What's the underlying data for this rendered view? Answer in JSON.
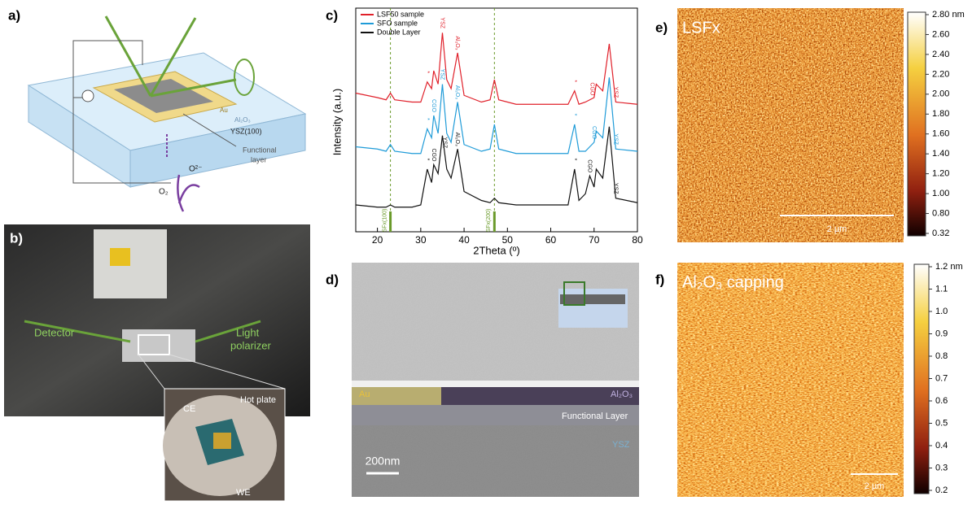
{
  "panel_a": {
    "label": "a)",
    "au": "Au",
    "al2o3": "Al₂O₃",
    "ysz": "YSZ(100)",
    "functional_layer": [
      "Functional",
      "layer"
    ],
    "o2minus": "O²⁻",
    "o2": "O₂"
  },
  "panel_b": {
    "label": "b)",
    "detector": "Detector",
    "light_polarizer": [
      "Light",
      "polarizer"
    ],
    "ce": "CE",
    "hot_plate": "Hot plate",
    "we": "WE"
  },
  "chart_data": {
    "type": "line",
    "label": "c)",
    "x_label": "2Theta (º)",
    "y_label": "Intensity (a.u.)",
    "xlim": [
      15,
      80
    ],
    "xticks": [
      20,
      30,
      40,
      50,
      60,
      70,
      80
    ],
    "ylim": [
      0,
      100
    ],
    "reference_x": [
      23,
      47
    ],
    "reference_labels": [
      "SFx(100)",
      "SFx(200)"
    ],
    "reference_color": "#6a9a2a",
    "x": [
      15,
      20,
      22,
      23,
      24,
      28,
      30,
      31.5,
      32.5,
      33,
      34,
      35,
      36,
      37,
      38.5,
      40,
      44,
      46,
      47,
      48,
      52,
      60,
      64,
      65.5,
      66.5,
      68,
      69,
      70,
      70.5,
      72,
      73.5,
      75,
      80
    ],
    "series": [
      {
        "name": "LSF50 sample",
        "color": "#e0202a",
        "values": [
          62,
          60,
          59,
          62,
          59,
          58,
          58,
          67,
          64,
          72,
          66,
          89,
          68,
          64,
          80,
          61,
          58,
          59,
          68,
          59,
          57,
          57,
          57,
          63,
          57,
          58,
          59,
          60,
          66,
          63,
          84,
          58,
          57
        ],
        "peak_labels": [
          {
            "x": 31.5,
            "text": "*"
          },
          {
            "x": 35,
            "text": "YSZ"
          },
          {
            "x": 38.5,
            "text": "Al₂O₃"
          },
          {
            "x": 65.5,
            "text": "*"
          },
          {
            "x": 69.5,
            "text": "CGO"
          },
          {
            "x": 75,
            "text": "YSZ"
          }
        ]
      },
      {
        "name": "SFO sample",
        "color": "#1f9bd8",
        "values": [
          38,
          37,
          36,
          39,
          36,
          35,
          35,
          46,
          42,
          52,
          44,
          66,
          44,
          40,
          58,
          39,
          36,
          37,
          48,
          37,
          35,
          35,
          35,
          48,
          36,
          36,
          38,
          40,
          45,
          42,
          69,
          37,
          36
        ],
        "peak_labels": [
          {
            "x": 31.5,
            "text": "*"
          },
          {
            "x": 33,
            "text": "CGO"
          },
          {
            "x": 35,
            "text": "YSZ"
          },
          {
            "x": 38.5,
            "text": "Al₂O₃"
          },
          {
            "x": 65.5,
            "text": "*"
          },
          {
            "x": 70,
            "text": "CGO"
          },
          {
            "x": 75,
            "text": "YSZ"
          }
        ]
      },
      {
        "name": "Double Layer",
        "color": "#111111",
        "values": [
          12,
          11,
          11,
          12,
          11,
          11,
          12,
          28,
          22,
          30,
          26,
          43,
          28,
          24,
          37,
          18,
          14,
          13,
          15,
          13,
          12,
          12,
          12,
          28,
          14,
          17,
          25,
          20,
          28,
          24,
          47,
          15,
          13
        ],
        "peak_labels": [
          {
            "x": 31.5,
            "text": "*"
          },
          {
            "x": 33,
            "text": "CGO"
          },
          {
            "x": 35.5,
            "text": "YSZ"
          },
          {
            "x": 38.5,
            "text": "Al₂O₃"
          },
          {
            "x": 65.5,
            "text": "*"
          },
          {
            "x": 69,
            "text": "CGO"
          },
          {
            "x": 75,
            "text": "YSZ"
          }
        ]
      }
    ]
  },
  "panel_d": {
    "label": "d)",
    "au": "Au",
    "al2o3": "Al₂O₃",
    "functional_layer": "Functional Layer",
    "ysz": "YSZ",
    "scale": "200nm"
  },
  "panel_e": {
    "label": "e)",
    "title": "LSFx",
    "scale": "2 µm",
    "colorbar": [
      "2.80 nm",
      "2.60",
      "2.40",
      "2.20",
      "2.00",
      "1.80",
      "1.60",
      "1.40",
      "1.20",
      "1.00",
      "0.80",
      "0.32"
    ]
  },
  "panel_f": {
    "label": "f)",
    "title": "Al₂O₃ capping",
    "scale": "2 µm",
    "colorbar": [
      "1.2 nm",
      "1.1",
      "1.0",
      "0.9",
      "0.8",
      "0.7",
      "0.6",
      "0.5",
      "0.4",
      "0.3",
      "0.2"
    ]
  }
}
